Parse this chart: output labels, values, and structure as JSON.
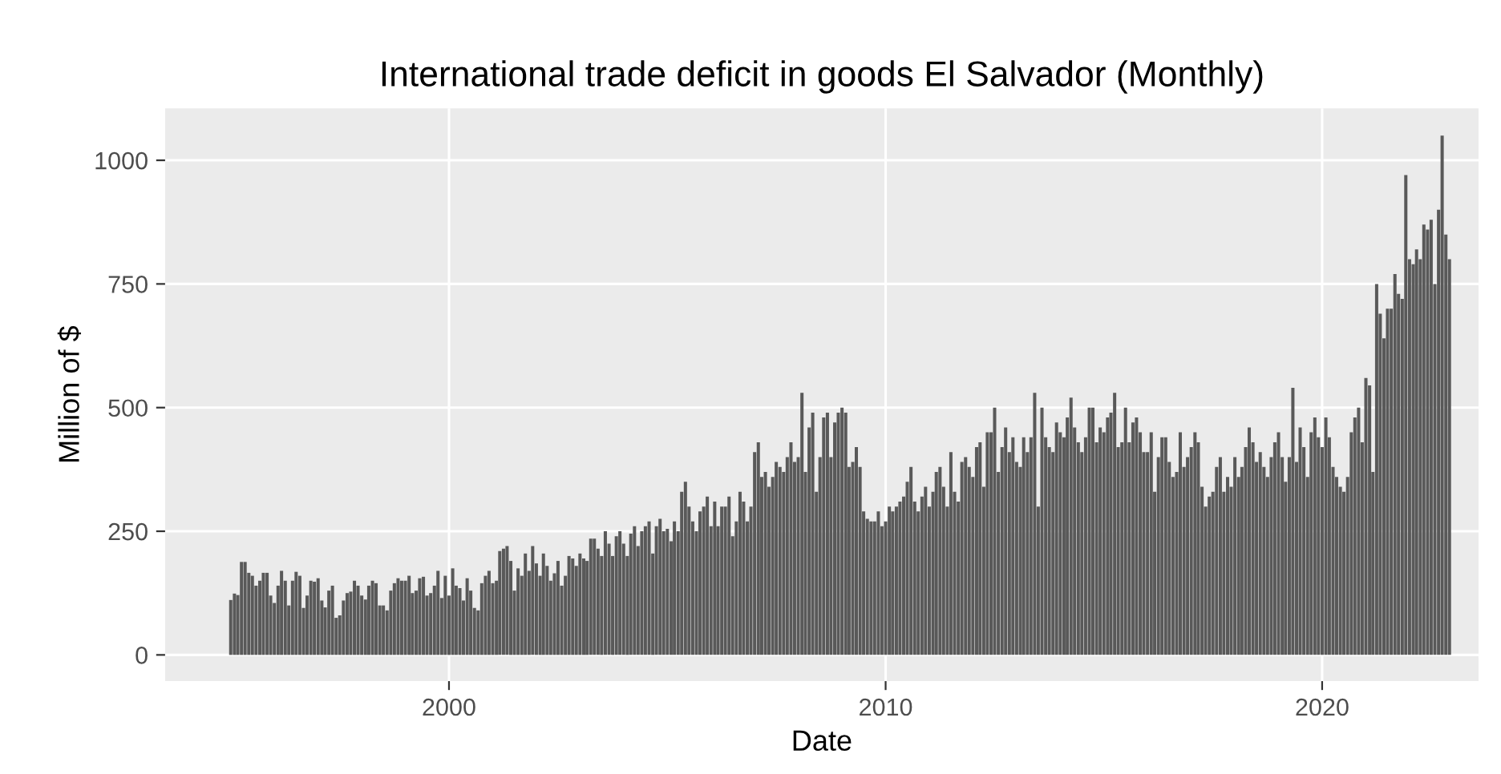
{
  "chart_data": {
    "type": "bar",
    "title": "International trade deficit in goods El Salvador (Monthly)",
    "xlabel": "Date",
    "ylabel": "Million of $",
    "x": [
      "1995-01",
      "1995-02",
      "1995-03",
      "1995-04",
      "1995-05",
      "1995-06",
      "1995-07",
      "1995-08",
      "1995-09",
      "1995-10",
      "1995-11",
      "1995-12",
      "1996-01",
      "1996-02",
      "1996-03",
      "1996-04",
      "1996-05",
      "1996-06",
      "1996-07",
      "1996-08",
      "1996-09",
      "1996-10",
      "1996-11",
      "1996-12",
      "1997-01",
      "1997-02",
      "1997-03",
      "1997-04",
      "1997-05",
      "1997-06",
      "1997-07",
      "1997-08",
      "1997-09",
      "1997-10",
      "1997-11",
      "1997-12",
      "1998-01",
      "1998-02",
      "1998-03",
      "1998-04",
      "1998-05",
      "1998-06",
      "1998-07",
      "1998-08",
      "1998-09",
      "1998-10",
      "1998-11",
      "1998-12",
      "1999-01",
      "1999-02",
      "1999-03",
      "1999-04",
      "1999-05",
      "1999-06",
      "1999-07",
      "1999-08",
      "1999-09",
      "1999-10",
      "1999-11",
      "1999-12",
      "2000-01",
      "2000-02",
      "2000-03",
      "2000-04",
      "2000-05",
      "2000-06",
      "2000-07",
      "2000-08",
      "2000-09",
      "2000-10",
      "2000-11",
      "2000-12",
      "2001-01",
      "2001-02",
      "2001-03",
      "2001-04",
      "2001-05",
      "2001-06",
      "2001-07",
      "2001-08",
      "2001-09",
      "2001-10",
      "2001-11",
      "2001-12",
      "2002-01",
      "2002-02",
      "2002-03",
      "2002-04",
      "2002-05",
      "2002-06",
      "2002-07",
      "2002-08",
      "2002-09",
      "2002-10",
      "2002-11",
      "2002-12",
      "2003-01",
      "2003-02",
      "2003-03",
      "2003-04",
      "2003-05",
      "2003-06",
      "2003-07",
      "2003-08",
      "2003-09",
      "2003-10",
      "2003-11",
      "2003-12",
      "2004-01",
      "2004-02",
      "2004-03",
      "2004-04",
      "2004-05",
      "2004-06",
      "2004-07",
      "2004-08",
      "2004-09",
      "2004-10",
      "2004-11",
      "2004-12",
      "2005-01",
      "2005-02",
      "2005-03",
      "2005-04",
      "2005-05",
      "2005-06",
      "2005-07",
      "2005-08",
      "2005-09",
      "2005-10",
      "2005-11",
      "2005-12",
      "2006-01",
      "2006-02",
      "2006-03",
      "2006-04",
      "2006-05",
      "2006-06",
      "2006-07",
      "2006-08",
      "2006-09",
      "2006-10",
      "2006-11",
      "2006-12",
      "2007-01",
      "2007-02",
      "2007-03",
      "2007-04",
      "2007-05",
      "2007-06",
      "2007-07",
      "2007-08",
      "2007-09",
      "2007-10",
      "2007-11",
      "2007-12",
      "2008-01",
      "2008-02",
      "2008-03",
      "2008-04",
      "2008-05",
      "2008-06",
      "2008-07",
      "2008-08",
      "2008-09",
      "2008-10",
      "2008-11",
      "2008-12",
      "2009-01",
      "2009-02",
      "2009-03",
      "2009-04",
      "2009-05",
      "2009-06",
      "2009-07",
      "2009-08",
      "2009-09",
      "2009-10",
      "2009-11",
      "2009-12",
      "2010-01",
      "2010-02",
      "2010-03",
      "2010-04",
      "2010-05",
      "2010-06",
      "2010-07",
      "2010-08",
      "2010-09",
      "2010-10",
      "2010-11",
      "2010-12",
      "2011-01",
      "2011-02",
      "2011-03",
      "2011-04",
      "2011-05",
      "2011-06",
      "2011-07",
      "2011-08",
      "2011-09",
      "2011-10",
      "2011-11",
      "2011-12",
      "2012-01",
      "2012-02",
      "2012-03",
      "2012-04",
      "2012-05",
      "2012-06",
      "2012-07",
      "2012-08",
      "2012-09",
      "2012-10",
      "2012-11",
      "2012-12",
      "2013-01",
      "2013-02",
      "2013-03",
      "2013-04",
      "2013-05",
      "2013-06",
      "2013-07",
      "2013-08",
      "2013-09",
      "2013-10",
      "2013-11",
      "2013-12",
      "2014-01",
      "2014-02",
      "2014-03",
      "2014-04",
      "2014-05",
      "2014-06",
      "2014-07",
      "2014-08",
      "2014-09",
      "2014-10",
      "2014-11",
      "2014-12",
      "2015-01",
      "2015-02",
      "2015-03",
      "2015-04",
      "2015-05",
      "2015-06",
      "2015-07",
      "2015-08",
      "2015-09",
      "2015-10",
      "2015-11",
      "2015-12",
      "2016-01",
      "2016-02",
      "2016-03",
      "2016-04",
      "2016-05",
      "2016-06",
      "2016-07",
      "2016-08",
      "2016-09",
      "2016-10",
      "2016-11",
      "2016-12",
      "2017-01",
      "2017-02",
      "2017-03",
      "2017-04",
      "2017-05",
      "2017-06",
      "2017-07",
      "2017-08",
      "2017-09",
      "2017-10",
      "2017-11",
      "2017-12",
      "2018-01",
      "2018-02",
      "2018-03",
      "2018-04",
      "2018-05",
      "2018-06",
      "2018-07",
      "2018-08",
      "2018-09",
      "2018-10",
      "2018-11",
      "2018-12",
      "2019-01",
      "2019-02",
      "2019-03",
      "2019-04",
      "2019-05",
      "2019-06",
      "2019-07",
      "2019-08",
      "2019-09",
      "2019-10",
      "2019-11",
      "2019-12",
      "2020-01",
      "2020-02",
      "2020-03",
      "2020-04",
      "2020-05",
      "2020-06",
      "2020-07",
      "2020-08",
      "2020-09",
      "2020-10",
      "2020-11",
      "2020-12",
      "2021-01",
      "2021-02",
      "2021-03",
      "2021-04",
      "2021-05",
      "2021-06",
      "2021-07",
      "2021-08",
      "2021-09",
      "2021-10",
      "2021-11",
      "2021-12",
      "2022-01",
      "2022-02",
      "2022-03",
      "2022-04",
      "2022-05",
      "2022-06",
      "2022-07",
      "2022-08",
      "2022-09",
      "2022-10",
      "2022-11",
      "2022-12"
    ],
    "values": [
      111,
      124,
      121,
      188,
      188,
      166,
      160,
      140,
      150,
      166,
      166,
      120,
      105,
      140,
      170,
      150,
      100,
      150,
      168,
      160,
      95,
      120,
      150,
      148,
      155,
      110,
      96,
      130,
      140,
      75,
      80,
      110,
      125,
      128,
      150,
      140,
      120,
      112,
      140,
      150,
      145,
      100,
      100,
      90,
      130,
      145,
      155,
      150,
      150,
      160,
      125,
      130,
      155,
      158,
      120,
      125,
      140,
      170,
      115,
      160,
      120,
      175,
      140,
      135,
      110,
      155,
      130,
      95,
      90,
      145,
      160,
      170,
      145,
      150,
      210,
      215,
      220,
      190,
      130,
      175,
      160,
      205,
      170,
      220,
      185,
      160,
      205,
      180,
      150,
      165,
      190,
      140,
      160,
      200,
      195,
      180,
      205,
      195,
      190,
      235,
      235,
      215,
      200,
      250,
      225,
      200,
      240,
      250,
      225,
      200,
      245,
      260,
      220,
      250,
      260,
      270,
      205,
      260,
      275,
      250,
      255,
      230,
      270,
      250,
      330,
      350,
      300,
      270,
      250,
      290,
      300,
      320,
      260,
      310,
      260,
      300,
      300,
      320,
      240,
      270,
      330,
      310,
      270,
      300,
      410,
      430,
      360,
      370,
      340,
      360,
      390,
      380,
      370,
      400,
      430,
      390,
      400,
      530,
      370,
      460,
      490,
      330,
      400,
      480,
      490,
      400,
      470,
      490,
      500,
      490,
      380,
      390,
      420,
      380,
      290,
      275,
      270,
      270,
      290,
      260,
      270,
      300,
      290,
      300,
      310,
      320,
      350,
      380,
      310,
      290,
      320,
      340,
      300,
      330,
      370,
      380,
      340,
      300,
      410,
      330,
      310,
      390,
      400,
      380,
      360,
      420,
      430,
      340,
      450,
      450,
      500,
      370,
      420,
      460,
      410,
      440,
      390,
      380,
      440,
      410,
      440,
      530,
      300,
      500,
      440,
      420,
      410,
      470,
      450,
      440,
      480,
      520,
      460,
      430,
      410,
      440,
      500,
      500,
      430,
      460,
      450,
      480,
      490,
      530,
      420,
      430,
      500,
      430,
      470,
      480,
      450,
      410,
      410,
      450,
      330,
      400,
      440,
      440,
      390,
      360,
      370,
      450,
      380,
      400,
      420,
      450,
      430,
      340,
      300,
      320,
      330,
      380,
      400,
      330,
      360,
      340,
      400,
      360,
      380,
      420,
      460,
      430,
      390,
      410,
      380,
      360,
      400,
      430,
      450,
      400,
      350,
      400,
      540,
      390,
      460,
      420,
      360,
      450,
      480,
      440,
      420,
      480,
      440,
      380,
      360,
      340,
      330,
      360,
      450,
      480,
      500,
      430,
      560,
      545,
      370,
      750,
      690,
      640,
      700,
      700,
      770,
      730,
      720,
      970,
      800,
      790,
      820,
      800,
      870,
      860,
      880,
      750,
      900,
      1050,
      850,
      800
    ],
    "color": "#595959",
    "xlim": [
      "1993-07",
      "2023-08"
    ],
    "xticks": [
      "2000",
      "2010",
      "2020"
    ],
    "ylim": [
      -53,
      1105
    ],
    "yticks": [
      0,
      250,
      500,
      750,
      1000
    ],
    "grid": true,
    "legend": false
  }
}
